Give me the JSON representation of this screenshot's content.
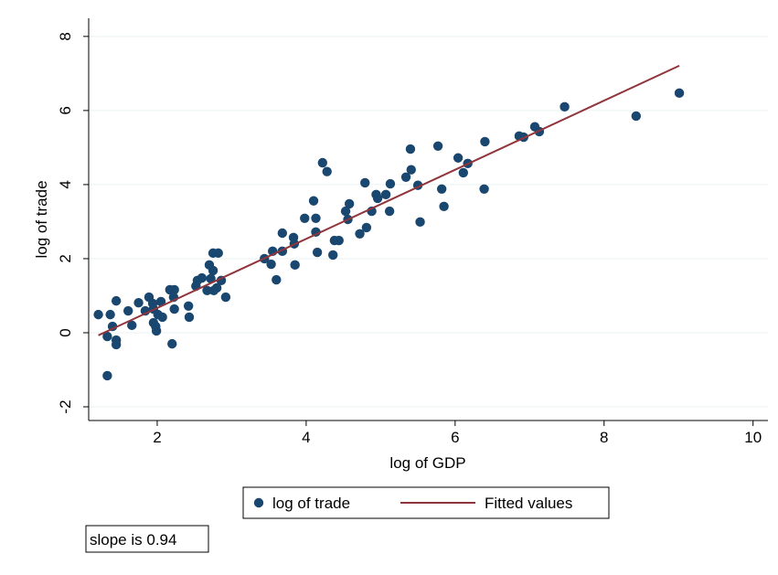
{
  "chart_data": {
    "type": "scatter",
    "xlabel": "log of GDP",
    "ylabel": "log of trade",
    "xlim": [
      1.08,
      10.2
    ],
    "ylim": [
      -2.37,
      8.49
    ],
    "xticks": [
      2,
      4,
      6,
      8,
      10
    ],
    "yticks": [
      -2,
      0,
      2,
      4,
      6,
      8
    ],
    "grid": true,
    "legend": "bottom",
    "annotation": "slope is 0.94",
    "series": [
      {
        "name": "log of trade",
        "type": "scatter",
        "color": "#1a476f",
        "x": [
          1.21,
          1.33,
          1.33,
          1.37,
          1.4,
          1.45,
          1.45,
          1.45,
          1.61,
          1.66,
          1.75,
          1.84,
          1.89,
          1.94,
          1.95,
          1.95,
          1.98,
          1.99,
          2.01,
          2.05,
          2.07,
          2.17,
          2.2,
          2.22,
          2.23,
          2.23,
          2.42,
          2.43,
          2.52,
          2.54,
          2.6,
          2.67,
          2.7,
          2.72,
          2.75,
          2.75,
          2.76,
          2.8,
          2.82,
          2.86,
          2.92,
          3.44,
          3.53,
          3.55,
          3.6,
          3.68,
          3.68,
          3.83,
          3.84,
          3.85,
          3.98,
          4.1,
          4.13,
          4.13,
          4.15,
          4.22,
          4.28,
          4.36,
          4.38,
          4.44,
          4.53,
          4.58,
          4.56,
          4.72,
          4.79,
          4.81,
          4.88,
          4.94,
          4.96,
          5.07,
          5.12,
          5.13,
          5.34,
          5.4,
          5.41,
          5.5,
          5.53,
          5.77,
          5.82,
          5.85,
          6.04,
          6.11,
          6.17,
          6.39,
          6.4,
          6.86,
          6.92,
          7.07,
          7.13,
          7.47,
          8.43,
          9.01
        ],
        "values": [
          0.49,
          -1.16,
          -0.1,
          0.49,
          0.17,
          -0.2,
          -0.32,
          0.86,
          0.59,
          0.2,
          0.81,
          0.59,
          0.96,
          0.79,
          0.64,
          0.27,
          0.17,
          0.05,
          0.49,
          0.84,
          0.42,
          1.16,
          -0.3,
          0.96,
          1.16,
          0.64,
          0.72,
          0.42,
          1.26,
          1.41,
          1.48,
          1.14,
          1.83,
          1.46,
          1.68,
          2.15,
          1.14,
          1.21,
          2.15,
          1.41,
          0.96,
          2.0,
          1.85,
          2.2,
          1.43,
          2.2,
          2.69,
          2.57,
          2.4,
          1.83,
          3.09,
          3.56,
          3.09,
          2.72,
          2.17,
          4.59,
          4.35,
          2.1,
          2.49,
          2.49,
          3.28,
          3.48,
          3.06,
          2.67,
          4.05,
          2.84,
          3.28,
          3.73,
          3.63,
          3.73,
          3.28,
          4.02,
          4.2,
          4.96,
          4.4,
          3.98,
          2.99,
          5.04,
          3.88,
          3.41,
          4.72,
          4.32,
          4.57,
          3.88,
          5.16,
          5.31,
          5.28,
          5.56,
          5.43,
          6.1,
          5.85,
          6.47
        ]
      },
      {
        "name": "Fitted values",
        "type": "line",
        "color": "#90353b",
        "x": [
          1.21,
          9.01
        ],
        "values": [
          -0.07,
          7.21
        ]
      }
    ]
  }
}
